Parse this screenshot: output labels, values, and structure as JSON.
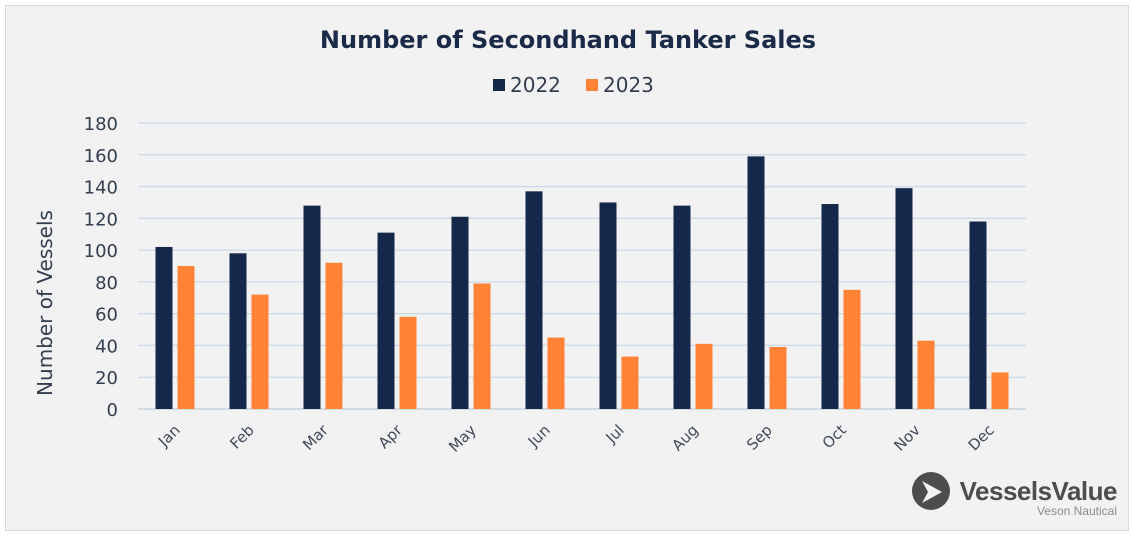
{
  "chart_data": {
    "type": "bar",
    "title": "Number of Secondhand Tanker Sales",
    "ylabel": "Number of Vessels",
    "xlabel": "",
    "ylim": [
      0,
      180
    ],
    "yticks": [
      0,
      20,
      40,
      60,
      80,
      100,
      120,
      140,
      160,
      180
    ],
    "grid": true,
    "legend_position": "top-center",
    "categories": [
      "Jan",
      "Feb",
      "Mar",
      "Apr",
      "May",
      "Jun",
      "Jul",
      "Aug",
      "Sep",
      "Oct",
      "Nov",
      "Dec"
    ],
    "series": [
      {
        "name": "2022",
        "color": "#16284a",
        "values": [
          102,
          98,
          128,
          111,
          121,
          137,
          130,
          128,
          159,
          129,
          139,
          118
        ]
      },
      {
        "name": "2023",
        "color": "#ff8235",
        "values": [
          90,
          72,
          92,
          58,
          79,
          45,
          33,
          41,
          39,
          75,
          43,
          23
        ]
      }
    ]
  },
  "brand": {
    "name": "VesselsValue",
    "tagline": "Veson Nautical",
    "icon": "vesselsvalue-logo-icon"
  },
  "colors": {
    "background": "#f2f2f2",
    "gridline": "#ccd9ea",
    "axis": "#bfcbd9"
  }
}
